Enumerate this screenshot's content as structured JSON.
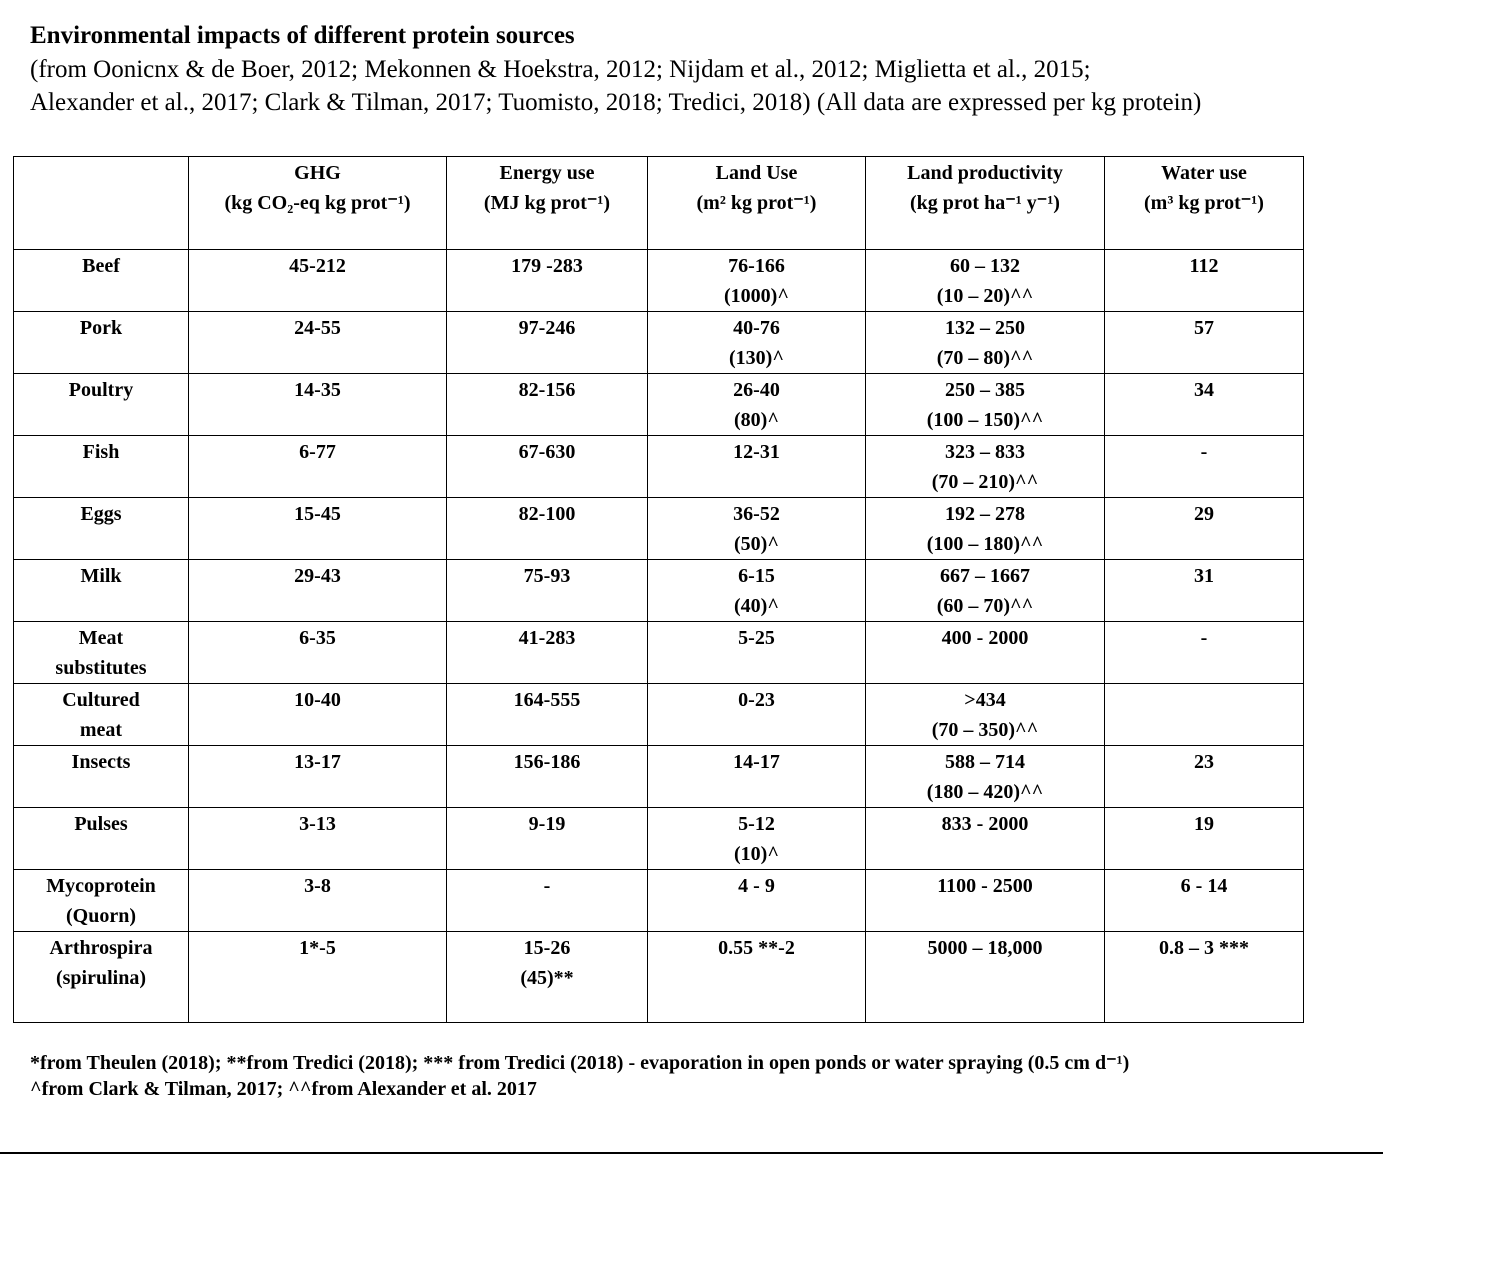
{
  "header": {
    "title": "Environmental impacts of different protein sources",
    "subtitle": [
      "(from Oonicnx & de Boer, 2012; Mekonnen & Hoekstra, 2012; Nijdam et al., 2012; Miglietta et al., 2015;",
      "Alexander et al., 2017; Clark &  Tilman, 2017; Tuomisto, 2018; Tredici, 2018) (All data are expressed per kg protein)"
    ]
  },
  "table": {
    "columns": [
      {
        "name": "GHG",
        "unit": "(kg CO₂-eq kg prot⁻¹)"
      },
      {
        "name": "Energy use",
        "unit": "(MJ kg prot⁻¹)"
      },
      {
        "name": "Land Use",
        "unit": "(m² kg prot⁻¹)"
      },
      {
        "name": "Land productivity",
        "unit": "(kg prot ha⁻¹ y⁻¹)"
      },
      {
        "name": "Water use",
        "unit": "(m³ kg prot⁻¹)"
      }
    ],
    "rows": [
      {
        "label": [
          "Beef"
        ],
        "cells": [
          [
            "45-212"
          ],
          [
            "179 -283"
          ],
          [
            "76-166",
            "(1000)^"
          ],
          [
            "60 – 132",
            "(10 – 20)^^"
          ],
          [
            "112"
          ]
        ]
      },
      {
        "label": [
          "Pork"
        ],
        "cells": [
          [
            "24-55"
          ],
          [
            "97-246"
          ],
          [
            "40-76",
            "(130)^"
          ],
          [
            "132 – 250",
            "(70 – 80)^^"
          ],
          [
            "57"
          ]
        ]
      },
      {
        "label": [
          "Poultry"
        ],
        "cells": [
          [
            "14-35"
          ],
          [
            "82-156"
          ],
          [
            "26-40",
            "(80)^"
          ],
          [
            "250 – 385",
            "(100 – 150)^^"
          ],
          [
            "34"
          ]
        ]
      },
      {
        "label": [
          "Fish"
        ],
        "cells": [
          [
            "6-77"
          ],
          [
            "67-630"
          ],
          [
            "12-31"
          ],
          [
            "323 – 833",
            "(70 – 210)^^"
          ],
          [
            "-"
          ]
        ]
      },
      {
        "label": [
          "Eggs"
        ],
        "cells": [
          [
            "15-45"
          ],
          [
            "82-100"
          ],
          [
            "36-52",
            "(50)^"
          ],
          [
            "192 – 278",
            "(100 – 180)^^"
          ],
          [
            "29"
          ]
        ]
      },
      {
        "label": [
          "Milk"
        ],
        "cells": [
          [
            "29-43"
          ],
          [
            "75-93"
          ],
          [
            "6-15",
            "(40)^"
          ],
          [
            "667 – 1667",
            "(60 – 70)^^"
          ],
          [
            "31"
          ]
        ]
      },
      {
        "label": [
          "Meat",
          "substitutes"
        ],
        "cells": [
          [
            "6-35"
          ],
          [
            "41-283"
          ],
          [
            "5-25"
          ],
          [
            "400 - 2000"
          ],
          [
            "-"
          ]
        ]
      },
      {
        "label": [
          "Cultured",
          "meat"
        ],
        "cells": [
          [
            "10-40"
          ],
          [
            "164-555"
          ],
          [
            "0-23"
          ],
          [
            ">434",
            "(70 – 350)^^"
          ],
          null
        ]
      },
      {
        "label": [
          "Insects"
        ],
        "cells": [
          [
            "13-17"
          ],
          [
            "156-186"
          ],
          [
            "14-17"
          ],
          [
            "588 – 714",
            "(180 – 420)^^"
          ],
          [
            "23"
          ]
        ]
      },
      {
        "label": [
          "Pulses"
        ],
        "cells": [
          [
            "3-13"
          ],
          [
            "9-19"
          ],
          [
            "5-12",
            "(10)^"
          ],
          [
            "833 - 2000"
          ],
          [
            "19"
          ]
        ]
      },
      {
        "label": [
          "Mycoprotein",
          "(Quorn)"
        ],
        "cells": [
          [
            "3-8"
          ],
          [
            "-"
          ],
          [
            "4 - 9"
          ],
          [
            "1100 - 2500"
          ],
          [
            "6 - 14"
          ]
        ]
      },
      {
        "label": [
          "Arthrospira",
          "(spirulina)"
        ],
        "cells": [
          [
            "1*-5"
          ],
          [
            "15-26",
            "(45)**"
          ],
          [
            "0.55 **-2"
          ],
          [
            "5000 – 18,000"
          ],
          [
            "0.8 – 3 ***"
          ]
        ]
      }
    ]
  },
  "footnotes": [
    "*from Theulen (2018); **from Tredici (2018); *** from Tredici (2018)  - evaporation in open ponds or water spraying (0.5 cm d⁻¹)",
    "^from Clark & Tilman, 2017; ^^from Alexander et al. 2017"
  ]
}
